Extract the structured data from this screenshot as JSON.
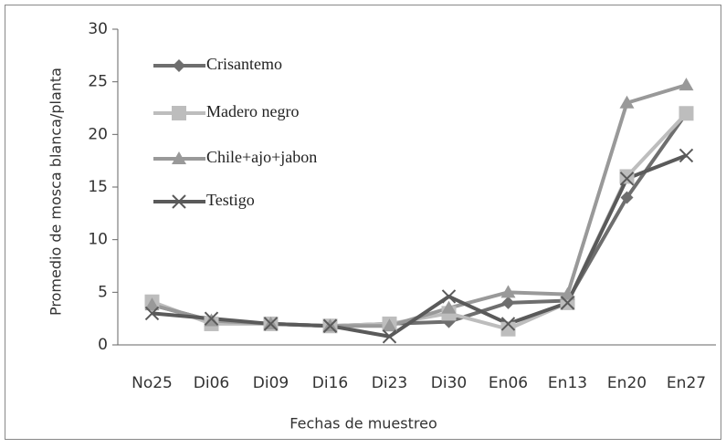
{
  "chart_data": {
    "type": "line",
    "x_label": "Fechas de muestreo",
    "y_label": "Promedio de mosca blanca/planta",
    "categories": [
      "No25",
      "Di06",
      "Di09",
      "Di16",
      "Di23",
      "Di30",
      "En06",
      "En13",
      "En20",
      "En27"
    ],
    "series": [
      {
        "name": "Crisantemo",
        "color": "#6e6e6e",
        "marker": "diamond",
        "values": [
          3.8,
          2.3,
          2.0,
          1.8,
          2.0,
          2.2,
          4.0,
          4.2,
          14.0,
          22.0
        ]
      },
      {
        "name": "Madero negro",
        "color": "#bdbdbd",
        "marker": "square",
        "values": [
          4.1,
          2.0,
          2.0,
          1.8,
          2.0,
          3.0,
          1.5,
          4.0,
          16.0,
          22.0
        ]
      },
      {
        "name": "Chile+ajo+jabon",
        "color": "#999999",
        "marker": "triangle",
        "values": [
          3.8,
          2.3,
          2.0,
          1.8,
          1.8,
          3.5,
          5.0,
          4.8,
          23.0,
          24.7
        ]
      },
      {
        "name": "Testigo",
        "color": "#5a5a5a",
        "marker": "x",
        "values": [
          3.0,
          2.5,
          2.0,
          1.8,
          0.8,
          4.6,
          2.0,
          4.0,
          15.8,
          18.0
        ]
      }
    ],
    "ylim": [
      0,
      30
    ],
    "yticks": [
      0,
      5,
      10,
      15,
      20,
      25,
      30
    ],
    "grid": false,
    "legend": "upper left"
  }
}
